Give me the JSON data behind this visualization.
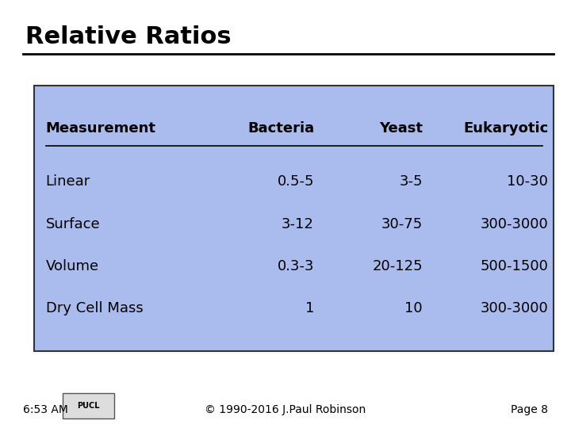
{
  "title": "Relative Ratios",
  "bg_color": "#ffffff",
  "table_bg_color": "#aabbee",
  "table_border_color": "#333333",
  "header_row": [
    "Measurement",
    "Bacteria",
    "Yeast",
    "Eukaryotic"
  ],
  "data_rows": [
    [
      "Linear",
      "0.5-5",
      "3-5",
      "10-30"
    ],
    [
      "Surface",
      "3-12",
      "30-75",
      "300-3000"
    ],
    [
      "Volume",
      "0.3-3",
      "20-125",
      "500-1500"
    ],
    [
      "Dry Cell Mass",
      "1",
      "10",
      "300-3000"
    ]
  ],
  "footer_left": "6:53 AM",
  "footer_center": "© 1990-2016 J.Paul Robinson",
  "footer_right": "Page 8",
  "col_alignments": [
    "left",
    "right",
    "right",
    "right"
  ],
  "title_fontsize": 22,
  "header_fontsize": 13,
  "data_fontsize": 13,
  "footer_fontsize": 10
}
